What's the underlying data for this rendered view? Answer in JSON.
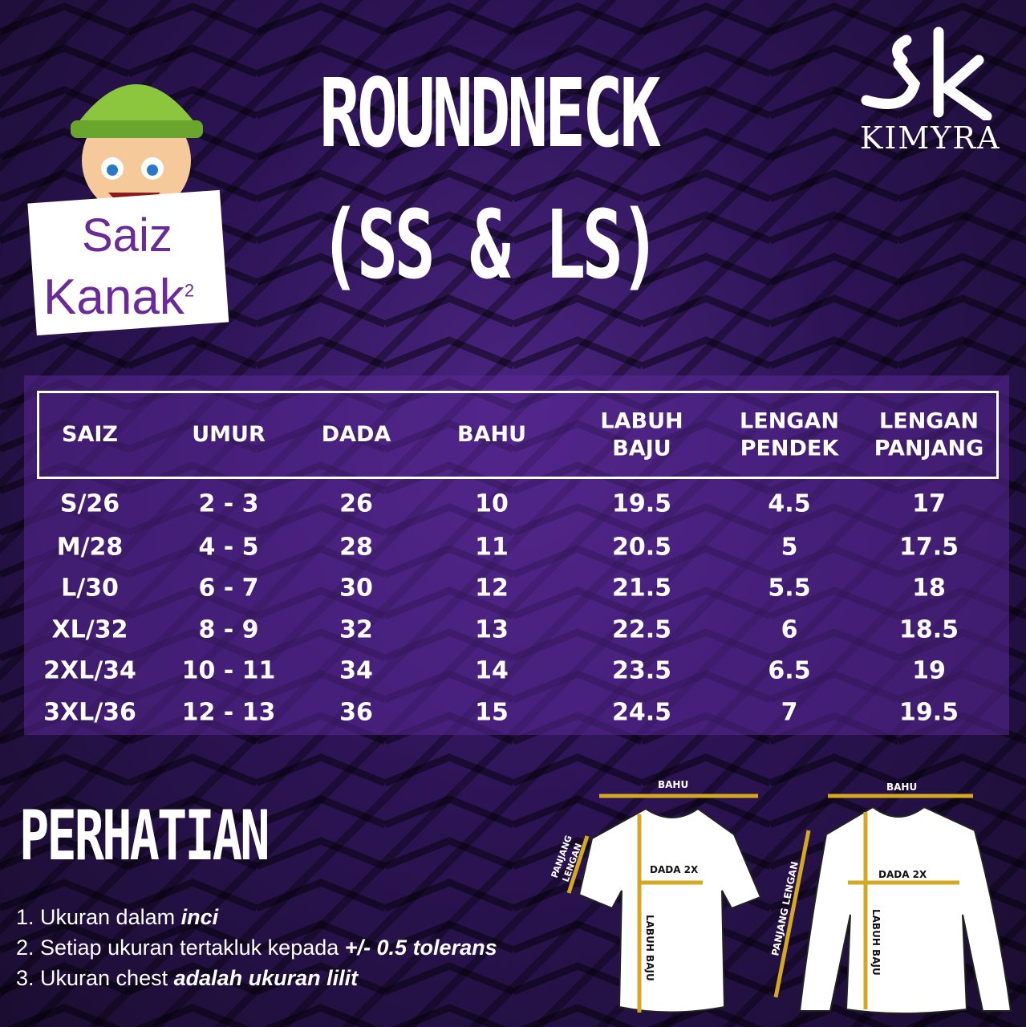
{
  "header": {
    "title_line1": "ROUNDNECK",
    "title_line2": "(SS & LS)"
  },
  "badge": {
    "line1": "Saiz",
    "line2": "Kanak",
    "superscript": "2"
  },
  "logo": {
    "text": "KIMYRA",
    "mark": "sk"
  },
  "table": {
    "headers": [
      [
        "SAIZ"
      ],
      [
        "UMUR"
      ],
      [
        "DADA"
      ],
      [
        "BAHU"
      ],
      [
        "LABUH",
        "BAJU"
      ],
      [
        "LENGAN",
        "PENDEK"
      ],
      [
        "LENGAN",
        "PANJANG"
      ]
    ],
    "rows": [
      [
        "S/26",
        "2 - 3",
        "26",
        "10",
        "19.5",
        "4.5",
        "17"
      ],
      [
        "M/28",
        "4 - 5",
        "28",
        "11",
        "20.5",
        "5",
        "17.5"
      ],
      [
        "L/30",
        "6 - 7",
        "30",
        "12",
        "21.5",
        "5.5",
        "18"
      ],
      [
        "XL/32",
        "8 - 9",
        "32",
        "13",
        "22.5",
        "6",
        "18.5"
      ],
      [
        "2XL/34",
        "10 - 11",
        "34",
        "14",
        "23.5",
        "6.5",
        "19"
      ],
      [
        "3XL/36",
        "12 - 13",
        "36",
        "15",
        "24.5",
        "7",
        "19.5"
      ]
    ]
  },
  "notes": {
    "title": "PERHATIAN",
    "items": [
      {
        "text": "1. Ukuran dalam ",
        "bold": "inci"
      },
      {
        "text": "2. Setiap ukuran tertakluk kepada ",
        "bold": "+/- 0.5 tolerans"
      },
      {
        "text": "3. Ukuran chest ",
        "bold": "adalah ukuran lilit"
      }
    ]
  },
  "diagram": {
    "shoulder": "BAHU",
    "chest": "DADA 2X",
    "length": "LABUH BAJU",
    "sleeve_short_1": "PANJANG",
    "sleeve_short_2": "LENGAN",
    "sleeve_long": "PANJANG LENGAN"
  },
  "colors": {
    "background": "#2d1456",
    "panel": "#5a2896",
    "measure_line": "#d4a820"
  }
}
